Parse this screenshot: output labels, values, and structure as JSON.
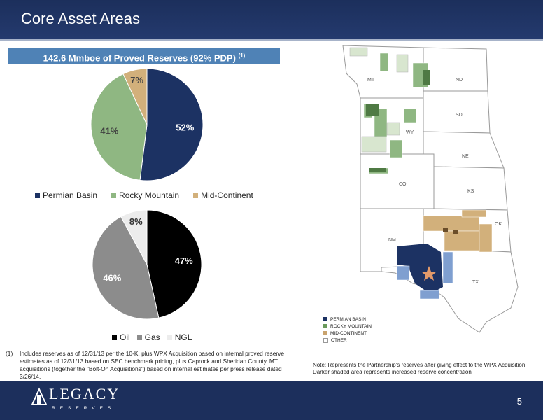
{
  "header": {
    "title": "Core Asset Areas"
  },
  "banner": {
    "text": "142.6 Mmboe of Proved Reserves (92% PDP)",
    "note_ref": "(1)"
  },
  "chart_data": [
    {
      "type": "pie",
      "categories": [
        "Permian Basin",
        "Rocky Mountain",
        "Mid-Continent"
      ],
      "values": [
        52,
        41,
        7
      ],
      "labels": [
        "52%",
        "41%",
        "7%"
      ],
      "colors": [
        "#1c3263",
        "#8fb782",
        "#d2b07b"
      ],
      "legend": "bottom"
    },
    {
      "type": "pie",
      "categories": [
        "Oil",
        "Gas",
        "NGL"
      ],
      "values": [
        47,
        46,
        8
      ],
      "labels": [
        "47%",
        "46%",
        "8%"
      ],
      "colors": [
        "#000000",
        "#8c8c8c",
        "#ececec"
      ],
      "legend": "bottom"
    }
  ],
  "footnote": {
    "num": "(1)",
    "text": "Includes reserves as of 12/31/13 per the 10-K, plus WPX Acquisition based on internal proved reserve estimates as of 12/31/13 based on SEC benchmark pricing, plus Caprock and Sheridan County, MT acquisitions (together the \"Bolt-On Acquisitions\") based on internal estimates per press release dated 3/26/14."
  },
  "map": {
    "states": [
      "MT",
      "ND",
      "SD",
      "WY",
      "NE",
      "CO",
      "KS",
      "OK",
      "NM",
      "TX"
    ],
    "legend": [
      {
        "label": "PERMIAN BASIN",
        "color": "#1c3263"
      },
      {
        "label": "ROCKY MOUNTAIN",
        "color": "#6a9a5c"
      },
      {
        "label": "MID-CONTINENT",
        "color": "#c9a36e"
      },
      {
        "label": "OTHER",
        "color": "#ffffff"
      }
    ],
    "note": "Note: Represents the Partnership's reserves after giving effect to the WPX Acquisition. Darker shaded area represents increased reserve concentration"
  },
  "footer": {
    "logo_main": "LEGACY",
    "logo_sub": "RESERVES",
    "page": "5"
  }
}
